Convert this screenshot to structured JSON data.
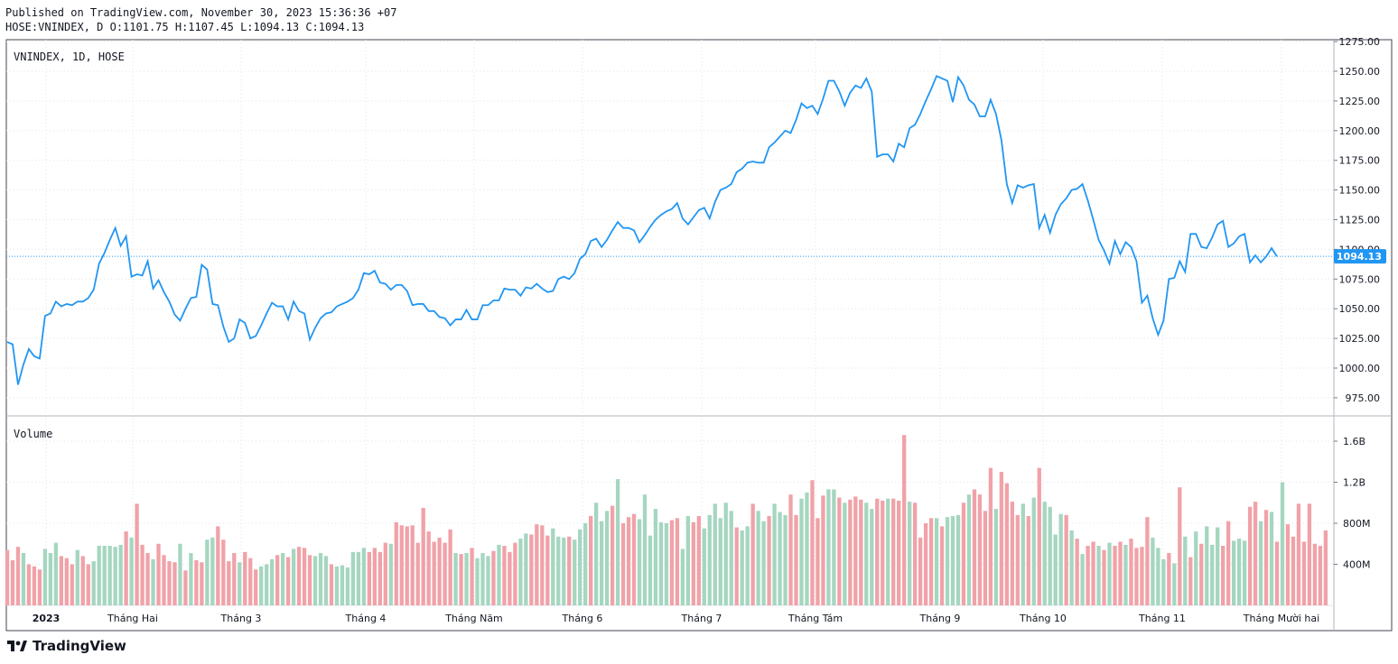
{
  "header": {
    "published": "Published on TradingView.com, November 30, 2023 15:36:36 +07",
    "ohlc": "HOSE:VNINDEX, D O:1101.75 H:1107.45 L:1094.13 C:1094.13"
  },
  "brand": {
    "label": "TradingView",
    "icon": "tradingview-logo-icon"
  },
  "colors": {
    "line": "#2196f3",
    "vol_up": "#a5d6c0",
    "vol_down": "#f0a2a8",
    "grid": "#e0e3eb",
    "price_tag": "#2196f3"
  },
  "chart_data": [
    {
      "type": "line",
      "title": "VNINDEX, 1D, HOSE",
      "ylim": [
        960,
        1280
      ],
      "y_ticks": [
        "975.00",
        "1000.00",
        "1025.00",
        "1050.00",
        "1075.00",
        "1100.00",
        "1125.00",
        "1150.00",
        "1175.00",
        "1200.00",
        "1225.00",
        "1250.00",
        "1275.00"
      ],
      "x_ticks": [
        "2023",
        "Tháng Hai",
        "Tháng 3",
        "Tháng 4",
        "Tháng Năm",
        "Tháng 6",
        "Tháng 7",
        "Tháng Tám",
        "Tháng 9",
        "Tháng 10",
        "Tháng 11",
        "Tháng Mười hai"
      ],
      "last_price": "1094.13",
      "grid": true,
      "series": [
        {
          "values": [
            1022,
            1020,
            986,
            1003,
            1016,
            1010,
            1008,
            1044,
            1046,
            1056,
            1052,
            1054,
            1053,
            1056,
            1056,
            1059,
            1066,
            1088,
            1097,
            1108,
            1118,
            1103,
            1111,
            1077,
            1079,
            1078,
            1090,
            1067,
            1074,
            1064,
            1056,
            1045,
            1040,
            1050,
            1059,
            1060,
            1087,
            1083,
            1054,
            1053,
            1035,
            1022,
            1025,
            1041,
            1038,
            1025,
            1027,
            1036,
            1046,
            1055,
            1052,
            1052,
            1041,
            1056,
            1048,
            1046,
            1024,
            1034,
            1042,
            1046,
            1047,
            1052,
            1054,
            1056,
            1059,
            1066,
            1080,
            1079,
            1082,
            1072,
            1071,
            1066,
            1070,
            1070,
            1065,
            1053,
            1054,
            1054,
            1048,
            1048,
            1043,
            1042,
            1036,
            1041,
            1041,
            1049,
            1041,
            1041,
            1053,
            1053,
            1057,
            1057,
            1067,
            1066,
            1066,
            1061,
            1068,
            1067,
            1071,
            1067,
            1064,
            1065,
            1075,
            1077,
            1075,
            1080,
            1092,
            1096,
            1107,
            1109,
            1102,
            1108,
            1116,
            1123,
            1118,
            1118,
            1116,
            1106,
            1112,
            1119,
            1125,
            1129,
            1132,
            1134,
            1139,
            1126,
            1121,
            1127,
            1133,
            1135,
            1126,
            1140,
            1150,
            1152,
            1155,
            1165,
            1168,
            1173,
            1174,
            1173,
            1173,
            1186,
            1190,
            1195,
            1200,
            1198,
            1209,
            1223,
            1219,
            1221,
            1214,
            1227,
            1242,
            1242,
            1233,
            1221,
            1232,
            1238,
            1236,
            1244,
            1233,
            1178,
            1180,
            1180,
            1174,
            1189,
            1186,
            1202,
            1205,
            1214,
            1225,
            1235,
            1246,
            1244,
            1242,
            1224,
            1245,
            1238,
            1226,
            1222,
            1212,
            1212,
            1226,
            1214,
            1192,
            1155,
            1139,
            1154,
            1152,
            1154,
            1155,
            1118,
            1129,
            1114,
            1129,
            1138,
            1143,
            1150,
            1151,
            1155,
            1141,
            1125,
            1108,
            1099,
            1088,
            1107,
            1096,
            1106,
            1102,
            1090,
            1055,
            1061,
            1042,
            1028,
            1040,
            1075,
            1076,
            1090,
            1081,
            1113,
            1113,
            1102,
            1101,
            1110,
            1121,
            1124,
            1102,
            1105,
            1111,
            1113,
            1089,
            1095,
            1089,
            1094,
            1101,
            1094
          ]
        }
      ]
    },
    {
      "type": "bar",
      "title": "Volume",
      "ylim": [
        0,
        1800
      ],
      "unit": "M",
      "y_ticks": [
        "400M",
        "800M",
        "1.2B",
        "1.6B"
      ],
      "values": [
        540,
        440,
        570,
        510,
        400,
        380,
        350,
        550,
        510,
        610,
        480,
        460,
        400,
        540,
        480,
        400,
        430,
        580,
        580,
        580,
        570,
        590,
        720,
        660,
        990,
        590,
        510,
        450,
        600,
        490,
        430,
        420,
        600,
        340,
        510,
        440,
        420,
        640,
        660,
        770,
        640,
        430,
        510,
        420,
        520,
        460,
        350,
        380,
        400,
        450,
        490,
        510,
        470,
        550,
        570,
        560,
        490,
        480,
        510,
        480,
        400,
        380,
        390,
        370,
        520,
        520,
        560,
        520,
        560,
        520,
        610,
        600,
        810,
        780,
        770,
        780,
        610,
        950,
        720,
        620,
        660,
        610,
        740,
        510,
        500,
        510,
        560,
        460,
        510,
        480,
        530,
        590,
        580,
        520,
        610,
        650,
        700,
        690,
        790,
        780,
        680,
        750,
        670,
        660,
        670,
        640,
        740,
        800,
        870,
        1000,
        820,
        920,
        970,
        1230,
        800,
        860,
        890,
        840,
        1080,
        680,
        940,
        810,
        800,
        830,
        850,
        550,
        870,
        810,
        870,
        750,
        880,
        990,
        850,
        1000,
        920,
        760,
        730,
        770,
        990,
        920,
        820,
        870,
        990,
        910,
        880,
        1080,
        880,
        1040,
        1100,
        1220,
        850,
        1070,
        1130,
        1130,
        1050,
        1000,
        1030,
        1060,
        1030,
        1000,
        940,
        1040,
        1020,
        1040,
        1040,
        1020,
        1660,
        1010,
        1000,
        660,
        800,
        850,
        850,
        770,
        860,
        870,
        880,
        1000,
        1080,
        1130,
        1080,
        920,
        1340,
        940,
        1300,
        1190,
        1010,
        880,
        990,
        870,
        1050,
        1340,
        1010,
        960,
        690,
        890,
        880,
        730,
        650,
        500,
        580,
        620,
        580,
        540,
        610,
        580,
        620,
        590,
        650,
        560,
        570,
        860,
        660,
        560,
        450,
        510,
        410,
        1150,
        670,
        470,
        720,
        600,
        770,
        590,
        760,
        580,
        820,
        630,
        650,
        630,
        960,
        1010,
        820,
        930,
        910,
        620,
        1200,
        790,
        670,
        990,
        620,
        990,
        600,
        580,
        730
      ],
      "up": [
        false,
        false,
        false,
        true,
        false,
        false,
        false,
        true,
        true,
        true,
        false,
        false,
        false,
        true,
        false,
        false,
        true,
        true,
        true,
        true,
        true,
        true,
        false,
        true,
        false,
        false,
        false,
        true,
        false,
        false,
        false,
        false,
        true,
        false,
        true,
        false,
        false,
        true,
        true,
        false,
        false,
        false,
        false,
        true,
        false,
        false,
        false,
        true,
        true,
        true,
        false,
        true,
        false,
        true,
        false,
        false,
        false,
        true,
        true,
        true,
        false,
        true,
        true,
        true,
        true,
        true,
        true,
        false,
        false,
        false,
        false,
        true,
        false,
        false,
        false,
        false,
        false,
        false,
        false,
        false,
        false,
        false,
        false,
        true,
        false,
        true,
        false,
        true,
        true,
        true,
        false,
        true,
        false,
        false,
        false,
        true,
        true,
        false,
        false,
        false,
        false,
        true,
        true,
        true,
        false,
        true,
        true,
        true,
        false,
        true,
        true,
        true,
        false,
        true,
        false,
        false,
        false,
        true,
        true,
        true,
        true,
        true,
        true,
        false,
        false,
        true,
        true,
        false,
        false,
        true,
        true,
        true,
        true,
        true,
        true,
        false,
        true,
        true,
        false,
        true,
        true,
        false,
        true,
        true,
        true,
        false,
        false,
        true,
        true,
        false,
        false,
        false,
        true,
        true,
        false,
        true,
        false,
        false,
        false,
        true,
        true,
        false,
        false,
        true,
        false,
        false,
        false,
        true,
        false,
        false,
        false,
        false,
        true,
        false,
        true,
        true,
        true,
        false,
        true,
        false,
        false,
        false,
        false,
        true,
        false,
        false,
        false,
        false,
        true,
        false,
        true,
        false,
        true,
        true,
        true,
        true,
        false,
        true,
        false,
        true,
        false,
        false,
        true,
        false,
        true,
        false,
        false,
        true,
        false,
        false,
        false,
        false,
        true,
        true,
        true,
        false,
        true,
        false,
        true,
        false,
        true,
        false,
        true,
        true,
        true,
        false,
        false,
        true,
        true,
        true,
        false,
        false,
        true,
        false,
        true,
        false,
        true,
        false
      ]
    }
  ]
}
